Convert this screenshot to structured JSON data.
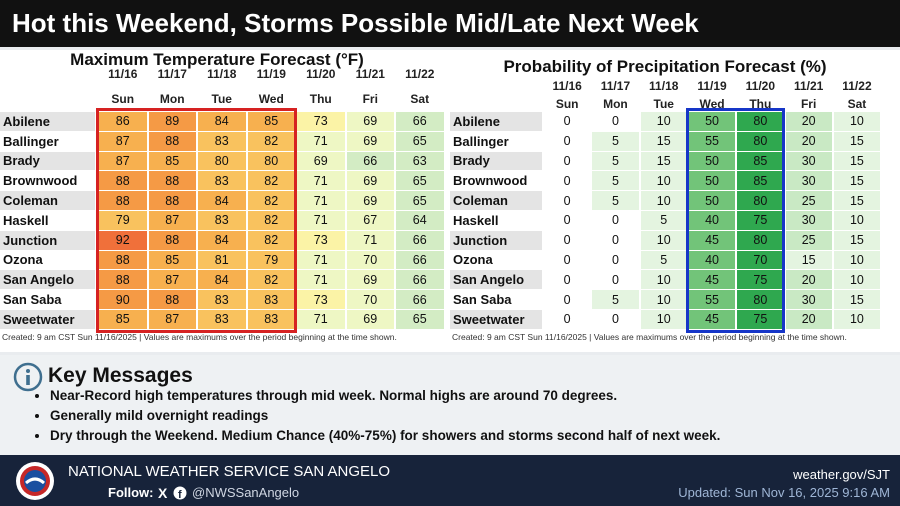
{
  "header": {
    "title": "Hot this Weekend, Storms Possible Mid/Late Next Week"
  },
  "temp_table": {
    "title": "Maximum Temperature Forecast (°F)",
    "dates": [
      "11/16",
      "11/17",
      "11/18",
      "11/19",
      "11/20",
      "11/21",
      "11/22"
    ],
    "days": [
      "Sun",
      "Mon",
      "Tue",
      "Wed",
      "Thu",
      "Fri",
      "Sat"
    ],
    "rows": [
      {
        "name": "Abilene",
        "values": [
          86,
          89,
          84,
          85,
          73,
          69,
          66
        ]
      },
      {
        "name": "Ballinger",
        "values": [
          87,
          88,
          83,
          82,
          71,
          69,
          65
        ]
      },
      {
        "name": "Brady",
        "values": [
          87,
          85,
          80,
          80,
          69,
          66,
          63
        ]
      },
      {
        "name": "Brownwood",
        "values": [
          88,
          88,
          83,
          82,
          71,
          69,
          65
        ]
      },
      {
        "name": "Coleman",
        "values": [
          88,
          88,
          84,
          82,
          71,
          69,
          65
        ]
      },
      {
        "name": "Haskell",
        "values": [
          79,
          87,
          83,
          82,
          71,
          67,
          64
        ]
      },
      {
        "name": "Junction",
        "values": [
          92,
          88,
          84,
          82,
          73,
          71,
          66
        ]
      },
      {
        "name": "Ozona",
        "values": [
          88,
          85,
          81,
          79,
          71,
          70,
          66
        ]
      },
      {
        "name": "San Angelo",
        "values": [
          88,
          87,
          84,
          82,
          71,
          69,
          66
        ]
      },
      {
        "name": "San Saba",
        "values": [
          90,
          88,
          83,
          83,
          73,
          70,
          66
        ]
      },
      {
        "name": "Sweetwater",
        "values": [
          85,
          87,
          83,
          83,
          71,
          69,
          65
        ]
      }
    ],
    "footnote": "Created: 9 am CST Sun 11/16/2025  |  Values are maximums over the period beginning at the time shown."
  },
  "pop_table": {
    "title": "Probability of Precipitation Forecast (%)",
    "dates": [
      "11/16",
      "11/17",
      "11/18",
      "11/19",
      "11/20",
      "11/21",
      "11/22"
    ],
    "days": [
      "Sun",
      "Mon",
      "Tue",
      "Wed",
      "Thu",
      "Fri",
      "Sat"
    ],
    "rows": [
      {
        "name": "Abilene",
        "values": [
          0,
          0,
          10,
          50,
          80,
          20,
          10
        ]
      },
      {
        "name": "Ballinger",
        "values": [
          0,
          5,
          15,
          55,
          80,
          20,
          15
        ]
      },
      {
        "name": "Brady",
        "values": [
          0,
          5,
          15,
          50,
          85,
          30,
          15
        ]
      },
      {
        "name": "Brownwood",
        "values": [
          0,
          5,
          10,
          50,
          85,
          30,
          15
        ]
      },
      {
        "name": "Coleman",
        "values": [
          0,
          5,
          10,
          50,
          80,
          25,
          15
        ]
      },
      {
        "name": "Haskell",
        "values": [
          0,
          0,
          5,
          40,
          75,
          30,
          10
        ]
      },
      {
        "name": "Junction",
        "values": [
          0,
          0,
          10,
          45,
          80,
          25,
          15
        ]
      },
      {
        "name": "Ozona",
        "values": [
          0,
          0,
          5,
          40,
          70,
          15,
          10
        ]
      },
      {
        "name": "San Angelo",
        "values": [
          0,
          0,
          10,
          45,
          75,
          20,
          10
        ]
      },
      {
        "name": "San Saba",
        "values": [
          0,
          5,
          10,
          55,
          80,
          30,
          15
        ]
      },
      {
        "name": "Sweetwater",
        "values": [
          0,
          0,
          10,
          45,
          75,
          20,
          10
        ]
      }
    ],
    "footnote": "Created: 9 am CST Sun 11/16/2025  |  Values are maximums over the period beginning at the time shown."
  },
  "key_messages": {
    "title": "Key Messages",
    "items": [
      "Near-Record high temperatures through mid week. Normal highs are around 70 degrees.",
      "Generally mild overnight readings",
      "Dry through the Weekend. Medium Chance (40%-75%) for showers and storms second half of next week."
    ]
  },
  "footer": {
    "organization": "NATIONAL WEATHER SERVICE SAN ANGELO",
    "follow": "Follow:",
    "handle": "@NWSSanAngelo",
    "website": "weather.gov/SJT",
    "updated": "Updated: Sun Nov 16, 2025 9:16 AM"
  }
}
